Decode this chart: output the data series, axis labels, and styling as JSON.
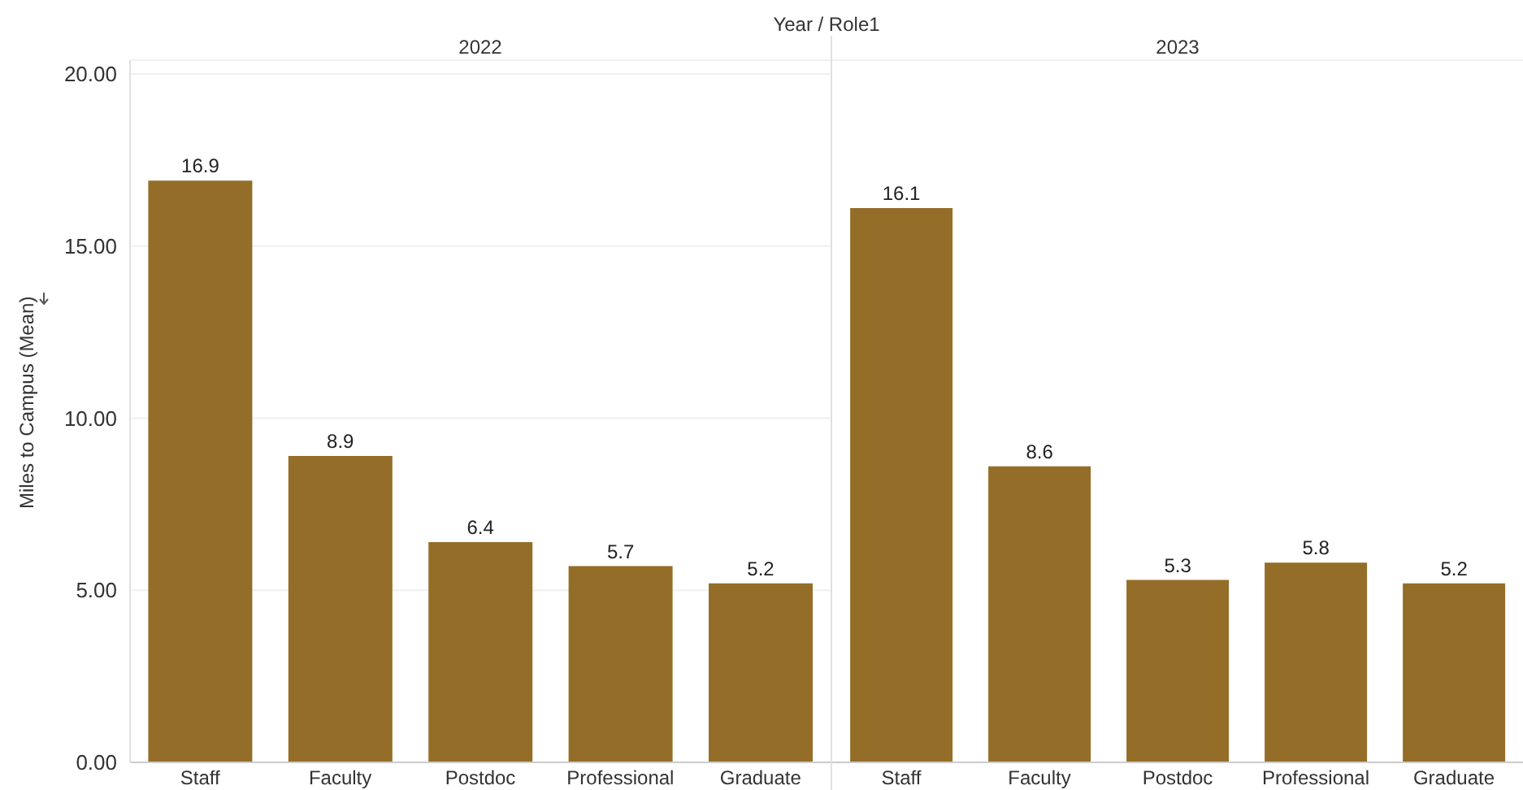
{
  "chart_data": [
    {
      "type": "bar",
      "title": "2022",
      "ylabel": "Miles to Campus (Mean)",
      "annotations": [
        "Year / Role1"
      ],
      "categories": [
        "Staff",
        "Faculty",
        "Postdoc",
        "Professional",
        "Graduate"
      ],
      "values": [
        16.9,
        8.9,
        6.4,
        5.7,
        5.2
      ],
      "color": "#946e28",
      "data_labels": true,
      "grid": "y",
      "ylim": [
        0,
        20.4
      ],
      "yticks": [
        {
          "value": 0,
          "label": "0.00"
        },
        {
          "value": 5,
          "label": "5.00"
        },
        {
          "value": 10,
          "label": "10.00"
        },
        {
          "value": 15,
          "label": "15.00"
        },
        {
          "value": 20,
          "label": "20.00"
        }
      ],
      "legend": false
    },
    {
      "type": "bar",
      "title": "2023",
      "categories": [
        "Staff",
        "Faculty",
        "Postdoc",
        "Professional",
        "Graduate"
      ],
      "values": [
        16.1,
        8.6,
        5.3,
        5.8,
        5.2
      ],
      "color": "#946e28",
      "data_labels": true,
      "grid": "y",
      "ylim": [
        0,
        20.4
      ],
      "yticks": [
        {
          "value": 0,
          "label": null
        },
        {
          "value": 5,
          "label": null
        },
        {
          "value": 10,
          "label": null
        },
        {
          "value": 15,
          "label": null
        },
        {
          "value": 20,
          "label": null
        }
      ],
      "tick_labels": "x",
      "legend": false
    }
  ]
}
